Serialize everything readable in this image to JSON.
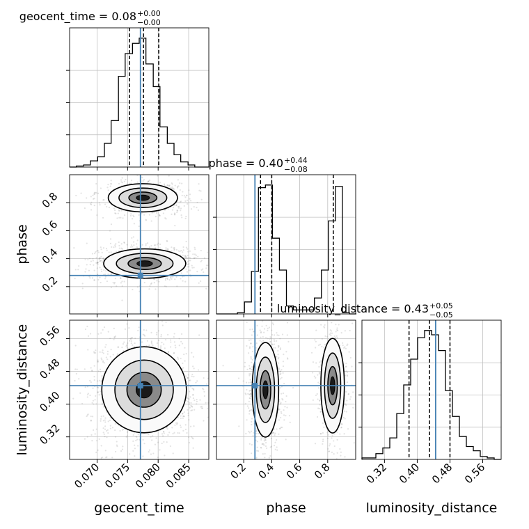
{
  "chart_data": {
    "type": "corner",
    "parameters": [
      "geocent_time",
      "phase",
      "luminosity_distance"
    ],
    "truth": {
      "geocent_time": 0.0771,
      "phase": 0.28,
      "luminosity_distance": 0.445
    },
    "colors": {
      "truth": "#4682b4",
      "hist": "#000000",
      "grid": "#c0c0c0",
      "scatter": "#808080"
    },
    "grid": true,
    "titles": [
      {
        "param": "geocent_time",
        "text": "geocent_time = 0.08",
        "sup": "+0.00",
        "sub": "−0.00"
      },
      {
        "param": "phase",
        "text": "phase = 0.40",
        "sup": "+0.44",
        "sub": "−0.08"
      },
      {
        "param": "luminosity_distance",
        "text": "luminosity_distance = 0.43",
        "sup": "+0.05",
        "sub": "−0.05"
      }
    ],
    "axis_labels": {
      "geocent_time": "geocent_time",
      "phase": "phase",
      "luminosity_distance": "luminosity_distance"
    },
    "ranges": {
      "geocent_time": [
        0.0655,
        0.0883
      ],
      "phase": [
        0.005,
        1.0
      ],
      "luminosity_distance": [
        0.265,
        0.605
      ]
    },
    "ticks": {
      "geocent_time": [
        0.07,
        0.075,
        0.08,
        0.085
      ],
      "geocent_time_labels": [
        "0.070",
        "0.075",
        "0.080",
        "0.085"
      ],
      "phase": [
        0.2,
        0.4,
        0.6,
        0.8
      ],
      "phase_labels": [
        "0.2",
        "0.4",
        "0.6",
        "0.8"
      ],
      "luminosity_distance": [
        0.32,
        0.4,
        0.48,
        0.56
      ],
      "luminosity_distance_labels": [
        "0.32",
        "0.40",
        "0.48",
        "0.56"
      ]
    },
    "quantiles": {
      "geocent_time": [
        0.0753,
        0.0776,
        0.0801
      ],
      "phase": [
        0.32,
        0.4,
        0.84
      ],
      "luminosity_distance": [
        0.38,
        0.43,
        0.48
      ]
    },
    "histograms": {
      "geocent_time": {
        "edges": [
          0.0655,
          0.0666,
          0.0678,
          0.0689,
          0.0701,
          0.0712,
          0.0723,
          0.0735,
          0.0746,
          0.0758,
          0.0769,
          0.078,
          0.0792,
          0.0803,
          0.0815,
          0.0826,
          0.0837,
          0.0849,
          0.086,
          0.0872,
          0.0883
        ],
        "counts": [
          0,
          1,
          2,
          6,
          10,
          23,
          45,
          88,
          110,
          120,
          125,
          100,
          78,
          39,
          23,
          12,
          5,
          2,
          0,
          0
        ]
      },
      "phase": {
        "edges": [
          0.005,
          0.055,
          0.105,
          0.155,
          0.205,
          0.255,
          0.305,
          0.355,
          0.405,
          0.455,
          0.505,
          0.555,
          0.605,
          0.655,
          0.705,
          0.755,
          0.805,
          0.855,
          0.905,
          0.955,
          1.005
        ],
        "counts": [
          0,
          0,
          0,
          1,
          9,
          32,
          95,
          97,
          57,
          33,
          6,
          3,
          3,
          3,
          12,
          33,
          70,
          96,
          1,
          0
        ]
      },
      "luminosity_distance": {
        "edges": [
          0.265,
          0.282,
          0.299,
          0.316,
          0.333,
          0.35,
          0.367,
          0.384,
          0.401,
          0.418,
          0.435,
          0.452,
          0.469,
          0.486,
          0.503,
          0.52,
          0.537,
          0.554,
          0.571,
          0.588,
          0.605
        ],
        "counts": [
          1,
          1,
          4,
          8,
          15,
          32,
          52,
          70,
          85,
          90,
          87,
          76,
          48,
          30,
          16,
          9,
          6,
          2,
          1,
          0
        ]
      }
    },
    "densities": {
      "geocent_time__phase": {
        "x": "geocent_time",
        "y": "phase",
        "modes": [
          {
            "cx": 0.0778,
            "cy": 0.365,
            "sx": 0.0032,
            "sy": 0.05,
            "w": 0.6
          },
          {
            "cx": 0.0775,
            "cy": 0.835,
            "sx": 0.0027,
            "sy": 0.048,
            "w": 0.4
          }
        ]
      },
      "geocent_time__luminosity_distance": {
        "x": "geocent_time",
        "y": "luminosity_distance",
        "modes": [
          {
            "cx": 0.0777,
            "cy": 0.435,
            "sx": 0.0033,
            "sy": 0.05,
            "w": 1.0
          }
        ]
      },
      "phase__luminosity_distance": {
        "x": "phase",
        "y": "luminosity_distance",
        "modes": [
          {
            "cx": 0.355,
            "cy": 0.435,
            "sx": 0.045,
            "sy": 0.055,
            "w": 0.6
          },
          {
            "cx": 0.835,
            "cy": 0.445,
            "sx": 0.04,
            "sy": 0.055,
            "w": 0.4
          }
        ]
      }
    }
  }
}
